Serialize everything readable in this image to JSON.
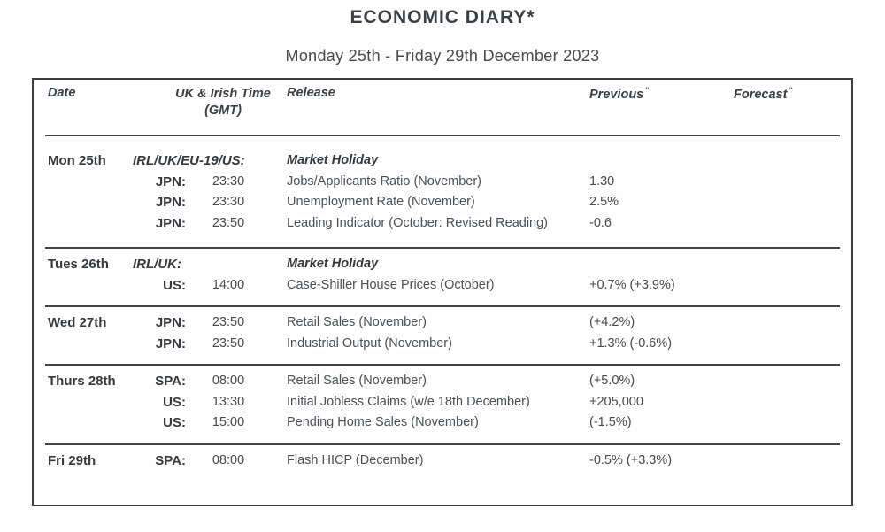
{
  "title": "ECONOMIC DIARY*",
  "subtitle": "Monday 25th - Friday 29th December 2023",
  "colors": {
    "text_dark": "#35393c",
    "text_body": "#4b5054",
    "border": "#3a3f44"
  },
  "table": {
    "headers": {
      "date": "Date",
      "time_line1": "UK & Irish Time",
      "time_line2": "(GMT)",
      "release": "Release",
      "previous": "Previous",
      "forecast": "Forecast",
      "footnote_mark": "\""
    },
    "groups": [
      {
        "date": "Mon 25th",
        "rows": [
          {
            "country": "IRL/UK/EU-19/US:",
            "time": "",
            "release": "Market Holiday",
            "previous": "",
            "forecast": "",
            "holiday": true
          },
          {
            "country": "JPN:",
            "time": "23:30",
            "release": "Jobs/Applicants Ratio (November)",
            "previous": "1.30",
            "forecast": ""
          },
          {
            "country": "JPN:",
            "time": "23:30",
            "release": "Unemployment Rate (November)",
            "previous": "2.5%",
            "forecast": ""
          },
          {
            "country": "JPN:",
            "time": "23:50",
            "release": "Leading Indicator (October: Revised Reading)",
            "previous": "-0.6",
            "forecast": ""
          }
        ]
      },
      {
        "date": "Tues 26th",
        "rows": [
          {
            "country": "IRL/UK:",
            "time": "",
            "release": "Market Holiday",
            "previous": "",
            "forecast": "",
            "holiday": true
          },
          {
            "country": "US:",
            "time": "14:00",
            "release": "Case-Shiller House Prices (October)",
            "previous": "+0.7% (+3.9%)",
            "forecast": ""
          }
        ]
      },
      {
        "date": "Wed 27th",
        "rows": [
          {
            "country": "JPN:",
            "time": "23:50",
            "release": "Retail Sales (November)",
            "previous": "(+4.2%)",
            "forecast": ""
          },
          {
            "country": "JPN:",
            "time": "23:50",
            "release": "Industrial Output (November)",
            "previous": "+1.3% (-0.6%)",
            "forecast": ""
          }
        ]
      },
      {
        "date": "Thurs 28th",
        "rows": [
          {
            "country": "SPA:",
            "time": "08:00",
            "release": "Retail Sales (November)",
            "previous": "(+5.0%)",
            "forecast": ""
          },
          {
            "country": "US:",
            "time": "13:30",
            "release": "Initial Jobless Claims (w/e 18th December)",
            "previous": "+205,000",
            "forecast": ""
          },
          {
            "country": "US:",
            "time": "15:00",
            "release": "Pending Home Sales (November)",
            "previous": "(-1.5%)",
            "forecast": ""
          }
        ]
      },
      {
        "date": "Fri 29th",
        "rows": [
          {
            "country": "SPA:",
            "time": "08:00",
            "release": "Flash HICP (December)",
            "previous": "-0.5% (+3.3%)",
            "forecast": ""
          }
        ]
      }
    ]
  }
}
